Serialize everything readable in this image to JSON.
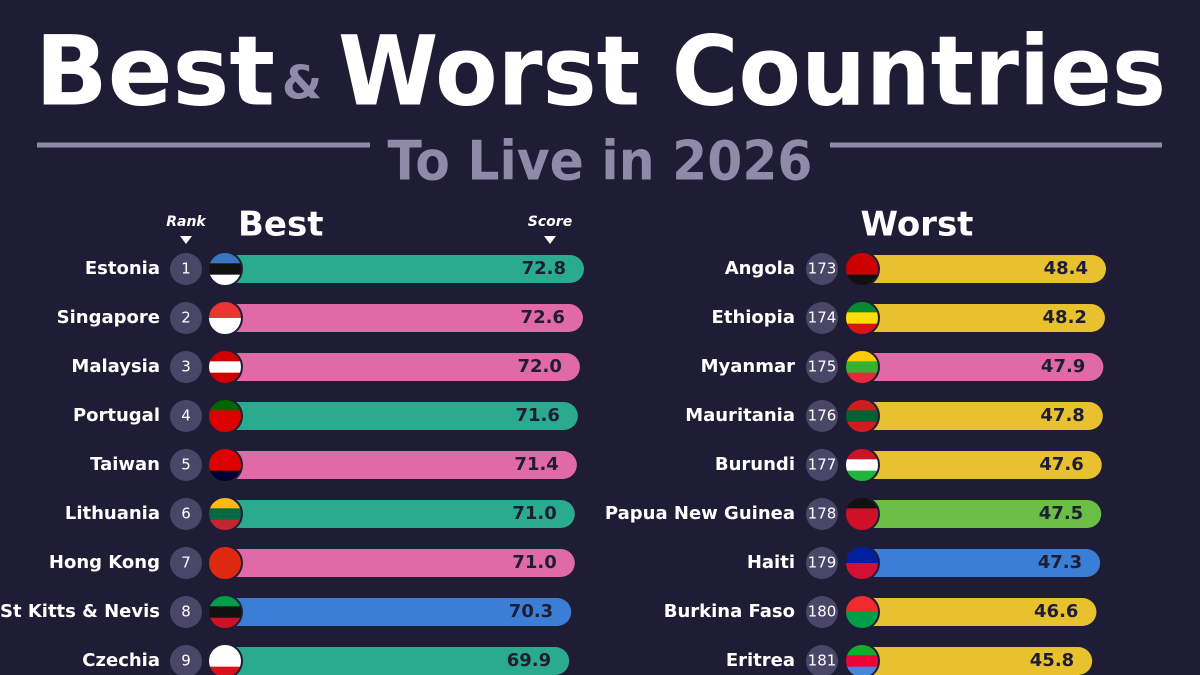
{
  "header": {
    "title_left": "Best",
    "title_amp": "&",
    "title_right": "Worst Countries",
    "subtitle": "To Live in 2026",
    "rank_label": "Rank",
    "score_label": "Score"
  },
  "chart_data": [
    {
      "type": "bar",
      "orientation": "horizontal",
      "title": "Best",
      "categories": [
        "Estonia",
        "Singapore",
        "Malaysia",
        "Portugal",
        "Taiwan",
        "Lithuania",
        "Hong Kong",
        "St Kitts & Nevis",
        "Czechia"
      ],
      "ranks": [
        1,
        2,
        3,
        4,
        5,
        6,
        7,
        8,
        9
      ],
      "values": [
        72.8,
        72.6,
        72.0,
        71.6,
        71.4,
        71.0,
        71.0,
        70.3,
        69.9
      ],
      "value_labels": [
        "72.8",
        "72.6",
        "72.0",
        "71.6",
        "71.4",
        "71.0",
        "71.0",
        "70.3",
        "69.9"
      ],
      "colors": [
        "#2bab8e",
        "#e06aa8",
        "#e06aa8",
        "#2bab8e",
        "#e06aa8",
        "#2bab8e",
        "#e06aa8",
        "#3a7fd5",
        "#2bab8e"
      ]
    },
    {
      "type": "bar",
      "orientation": "horizontal",
      "title": "Worst",
      "categories": [
        "Angola",
        "Ethiopia",
        "Myanmar",
        "Mauritania",
        "Burundi",
        "Papua New Guinea",
        "Haiti",
        "Burkina Faso",
        "Eritrea"
      ],
      "ranks": [
        173,
        174,
        175,
        176,
        177,
        178,
        179,
        180,
        181
      ],
      "values": [
        48.4,
        48.2,
        47.9,
        47.8,
        47.6,
        47.5,
        47.3,
        46.6,
        45.8
      ],
      "value_labels": [
        "48.4",
        "48.2",
        "47.9",
        "47.8",
        "47.6",
        "47.5",
        "47.3",
        "46.6",
        "45.8"
      ],
      "colors": [
        "#e8c12f",
        "#e8c12f",
        "#e06aa8",
        "#e8c12f",
        "#e8c12f",
        "#6cbf45",
        "#3a7fd5",
        "#e8c12f",
        "#e8c12f"
      ]
    }
  ]
}
